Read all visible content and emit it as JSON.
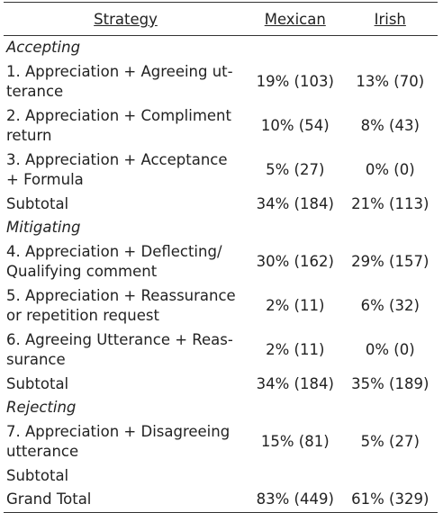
{
  "table": {
    "header": [
      "Strategy",
      "Mexican",
      "Irish"
    ],
    "rows": [
      {
        "section": "Accepting"
      },
      {
        "strategy": [
          "1. Appreciation + Agreeing ut-",
          "terance"
        ],
        "mexican": "19% (103)",
        "irish": "13% (70)"
      },
      {
        "strategy": [
          "2. Appreciation + Compliment",
          "return"
        ],
        "mexican": "10% (54)",
        "irish": "8% (43)"
      },
      {
        "strategy": [
          "3. Appreciation + Acceptance",
          "+ Formula"
        ],
        "mexican": "5% (27)",
        "irish": "0% (0)"
      },
      {
        "strategy": [
          "Subtotal"
        ],
        "mexican": "34% (184)",
        "irish": "21% (113)"
      },
      {
        "section": "Mitigating"
      },
      {
        "strategy": [
          "4. Appreciation + Deflecting/",
          "Qualifying comment"
        ],
        "mexican": "30% (162)",
        "irish": "29% (157)"
      },
      {
        "strategy": [
          "5. Appreciation + Reassurance",
          "or repetition request"
        ],
        "mexican": "2% (11)",
        "irish": "6% (32)"
      },
      {
        "strategy": [
          "6. Agreeing Utterance + Reas-",
          "surance"
        ],
        "mexican": "2% (11)",
        "irish": "0% (0)"
      },
      {
        "strategy": [
          "Subtotal"
        ],
        "mexican": "34% (184)",
        "irish": "35% (189)"
      },
      {
        "section": "Rejecting"
      },
      {
        "strategy": [
          "7. Appreciation + Disagreeing",
          "utterance"
        ],
        "mexican": "15% (81)",
        "irish": "5% (27)"
      },
      {
        "strategy": [
          "Subtotal"
        ]
      },
      {
        "strategy": [
          "Grand Total"
        ],
        "mexican": "83% (449)",
        "irish": "61% (329)"
      }
    ]
  }
}
